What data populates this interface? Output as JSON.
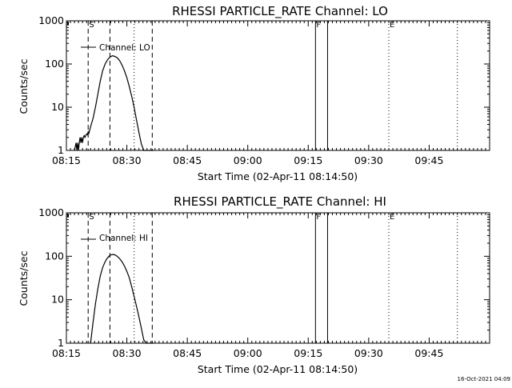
{
  "stamp": "16-Oct-2021 04:09",
  "chart_data": [
    {
      "type": "line",
      "title": "RHESSI PARTICLE_RATE Channel: LO",
      "xlabel": "Start Time (02-Apr-11 08:14:50)",
      "ylabel": "Counts/sec",
      "xlim": [
        8.25,
        10.0
      ],
      "ylim": [
        1,
        1000
      ],
      "yscale": "log",
      "xticks": [
        8.25,
        8.5,
        8.75,
        9.0,
        9.25,
        9.5,
        9.75
      ],
      "xtick_labels": [
        "08:15",
        "08:30",
        "08:45",
        "09:00",
        "09:15",
        "09:30",
        "09:45"
      ],
      "yticks": [
        1,
        10,
        100,
        1000
      ],
      "ytick_labels": [
        "1",
        "10",
        "100",
        "1000"
      ],
      "series": [
        {
          "name": "Channel: LO",
          "x": [
            8.2833,
            8.29,
            8.2933,
            8.2967,
            8.3,
            8.3033,
            8.3067,
            8.31,
            8.3133,
            8.3167,
            8.32,
            8.3233,
            8.3267,
            8.33,
            8.3333,
            8.3367,
            8.34,
            8.3433,
            8.3467,
            8.35,
            8.36,
            8.37,
            8.38,
            8.39,
            8.4,
            8.41,
            8.42,
            8.43,
            8.44,
            8.45,
            8.46,
            8.47,
            8.48,
            8.49,
            8.5,
            8.51,
            8.52,
            8.53,
            8.54,
            8.55,
            8.56,
            8.57,
            8.58,
            8.59,
            8.6,
            8.61
          ],
          "y": [
            1.0,
            1.5,
            1.0,
            1.5,
            1.0,
            1.5,
            2.0,
            1.5,
            2.0,
            1.5,
            2.0,
            2.2,
            2.0,
            2.2,
            2.4,
            2.3,
            2.7,
            2.5,
            3.0,
            3.5,
            5.5,
            10,
            20,
            40,
            70,
            100,
            125,
            145,
            155,
            150,
            140,
            120,
            95,
            70,
            48,
            30,
            18,
            10,
            5,
            2.6,
            1.4,
            1.0,
            1.0,
            1.0,
            1.0,
            1.0
          ]
        }
      ],
      "markers": [
        {
          "label": "S",
          "x": 8.34,
          "style": "dashed"
        },
        {
          "label": "",
          "x": 8.43,
          "style": "dashed"
        },
        {
          "label": "",
          "x": 8.605,
          "style": "dashed"
        },
        {
          "label": "",
          "x": 8.53,
          "style": "dotted"
        },
        {
          "label": "F",
          "x": 9.28,
          "style": "solid"
        },
        {
          "label": "",
          "x": 9.33,
          "style": "solid"
        },
        {
          "label": "E",
          "x": 9.5833,
          "style": "dotted"
        },
        {
          "label": "",
          "x": 9.8667,
          "style": "dotted"
        }
      ],
      "legend": "top-left"
    },
    {
      "type": "line",
      "title": "RHESSI PARTICLE_RATE Channel: HI",
      "xlabel": "Start Time (02-Apr-11 08:14:50)",
      "ylabel": "Counts/sec",
      "xlim": [
        8.25,
        10.0
      ],
      "ylim": [
        1,
        1000
      ],
      "yscale": "log",
      "xticks": [
        8.25,
        8.5,
        8.75,
        9.0,
        9.25,
        9.5,
        9.75
      ],
      "xtick_labels": [
        "08:15",
        "08:30",
        "08:45",
        "09:00",
        "09:15",
        "09:30",
        "09:45"
      ],
      "yticks": [
        1,
        10,
        100,
        1000
      ],
      "ytick_labels": [
        "1",
        "10",
        "100",
        "1000"
      ],
      "series": [
        {
          "name": "Channel: HI",
          "x": [
            8.35,
            8.36,
            8.37,
            8.38,
            8.39,
            8.4,
            8.41,
            8.42,
            8.43,
            8.44,
            8.45,
            8.46,
            8.47,
            8.48,
            8.49,
            8.5,
            8.51,
            8.52,
            8.53,
            8.54,
            8.55,
            8.56,
            8.57,
            8.58,
            8.59,
            8.6,
            8.61
          ],
          "y": [
            1.0,
            3.0,
            8,
            18,
            35,
            55,
            75,
            92,
            105,
            110,
            108,
            100,
            88,
            75,
            60,
            45,
            32,
            20,
            12,
            7,
            4,
            2.2,
            1.2,
            1.0,
            1.0,
            1.0,
            1.0
          ]
        }
      ],
      "markers": [
        {
          "label": "S",
          "x": 8.34,
          "style": "dashed"
        },
        {
          "label": "",
          "x": 8.43,
          "style": "dashed"
        },
        {
          "label": "",
          "x": 8.605,
          "style": "dashed"
        },
        {
          "label": "",
          "x": 8.53,
          "style": "dotted"
        },
        {
          "label": "F",
          "x": 9.28,
          "style": "solid"
        },
        {
          "label": "",
          "x": 9.33,
          "style": "solid"
        },
        {
          "label": "E",
          "x": 9.5833,
          "style": "dotted"
        },
        {
          "label": "",
          "x": 9.8667,
          "style": "dotted"
        }
      ],
      "legend": "top-left"
    }
  ]
}
